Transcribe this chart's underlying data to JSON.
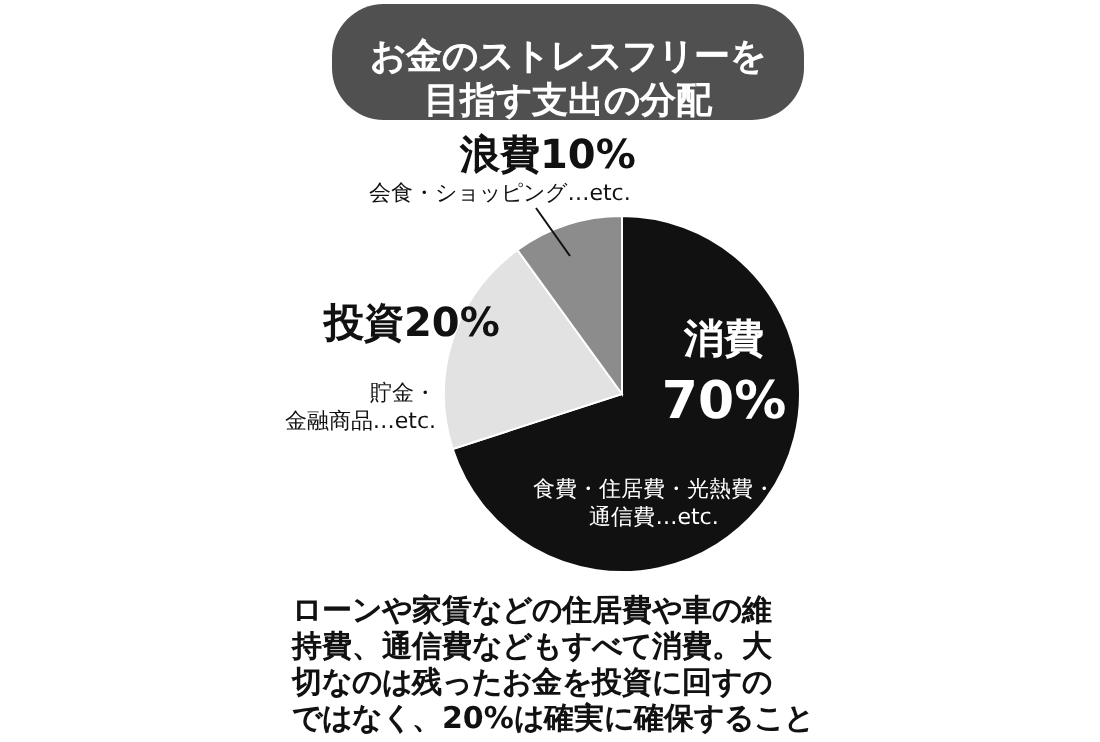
{
  "chart_data": {
    "type": "pie",
    "title": "お金のストレスフリーを目指す支出の分配",
    "categories": [
      "消費",
      "投資",
      "浪費"
    ],
    "values": [
      70,
      20,
      10
    ],
    "value_labels": [
      "70%",
      "20%",
      "10%"
    ],
    "colors": [
      "#111111",
      "#e2e2e2",
      "#8c8c8c"
    ],
    "annotations": [
      {
        "text": "食費・住居費・光熱費・通信費…etc.",
        "x": "消費"
      },
      {
        "text": "貯金・金融商品…etc.",
        "x": "投資"
      },
      {
        "text": "会食・ショッピング…etc.",
        "x": "浪費"
      },
      "ローンや家賃などの住居費や車の維持費、通信費などもすべて消費。大切なのは残ったお金を投資に回すのではなく、20%は確実に確保すること"
    ]
  }
}
